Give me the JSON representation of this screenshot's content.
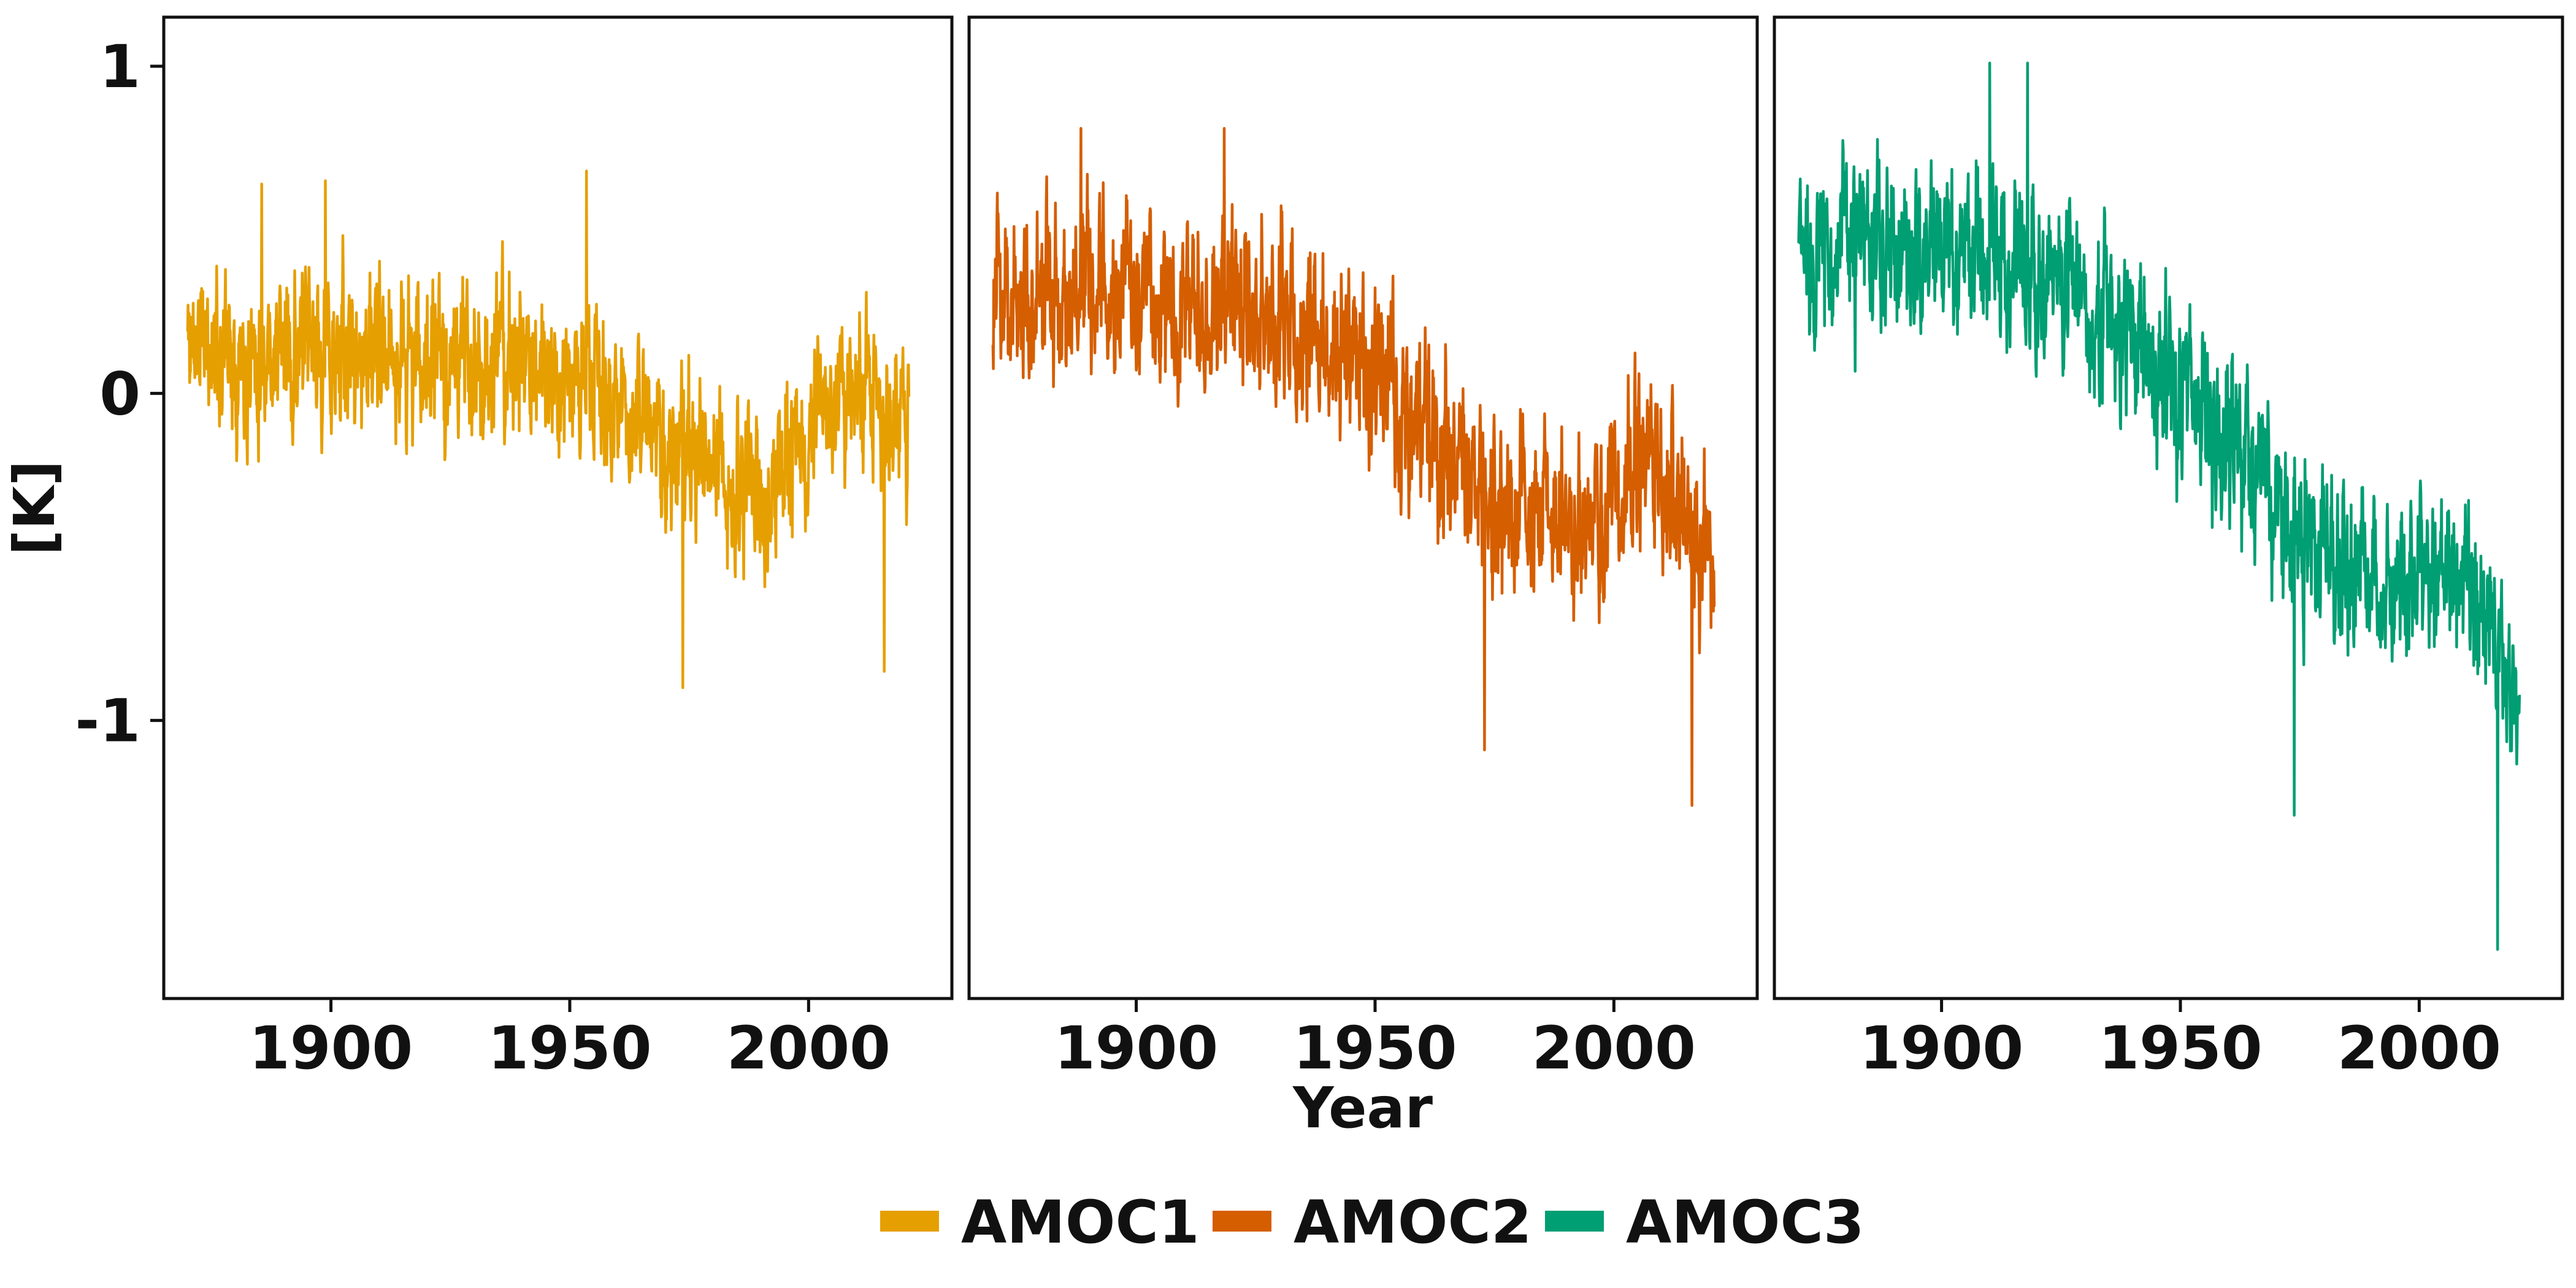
{
  "chart_data": {
    "type": "line",
    "panels": 3,
    "ylabel": "[K]",
    "xlabel": "Year",
    "xlim": [
      1865,
      2030
    ],
    "ylim": [
      -1.85,
      1.15
    ],
    "x_ticks": [
      1900,
      1950,
      2000
    ],
    "x_tick_labels": [
      "1900",
      "1950",
      "2000"
    ],
    "y_ticks": [
      1,
      0,
      -1
    ],
    "y_tick_labels": [
      "1",
      "0",
      "-1"
    ],
    "legend_position": "bottom-center",
    "series": [
      {
        "name": "AMOC1",
        "color": "#E69F00",
        "x_start": 1870,
        "x_end": 2021,
        "trend": [
          [
            1870,
            0.16
          ],
          [
            1900,
            0.12
          ],
          [
            1950,
            0.08
          ],
          [
            1975,
            -0.22
          ],
          [
            1990,
            -0.32
          ],
          [
            2010,
            0.02
          ],
          [
            2021,
            -0.12
          ]
        ],
        "noise_amplitude": 0.2,
        "seed": 11,
        "extremes": [
          [
            1885.5,
            0.64
          ],
          [
            1898.8,
            0.65
          ],
          [
            1953.5,
            0.68
          ],
          [
            1973.7,
            -0.9
          ],
          [
            2015.8,
            -0.85
          ]
        ]
      },
      {
        "name": "AMOC2",
        "color": "#D55E00",
        "x_start": 1870,
        "x_end": 2021,
        "trend": [
          [
            1870,
            0.3
          ],
          [
            1920,
            0.3
          ],
          [
            1950,
            0.07
          ],
          [
            1975,
            -0.38
          ],
          [
            1995,
            -0.42
          ],
          [
            2008,
            -0.2
          ],
          [
            2021,
            -0.55
          ]
        ],
        "noise_amplitude": 0.22,
        "seed": 23,
        "extremes": [
          [
            1888.4,
            0.81
          ],
          [
            1918.4,
            0.81
          ],
          [
            1972.9,
            -1.09
          ],
          [
            2016.3,
            -1.26
          ]
        ]
      },
      {
        "name": "AMOC3",
        "color": "#009E73",
        "x_start": 1870,
        "x_end": 2021,
        "trend": [
          [
            1870,
            0.45
          ],
          [
            1920,
            0.42
          ],
          [
            1950,
            0.02
          ],
          [
            1975,
            -0.42
          ],
          [
            1995,
            -0.62
          ],
          [
            2008,
            -0.5
          ],
          [
            2021,
            -1.0
          ]
        ],
        "noise_amplitude": 0.22,
        "seed": 37,
        "extremes": [
          [
            1910.1,
            1.01
          ],
          [
            1918.0,
            1.01
          ],
          [
            1973.8,
            -1.29
          ],
          [
            2016.4,
            -1.7
          ]
        ]
      }
    ]
  }
}
